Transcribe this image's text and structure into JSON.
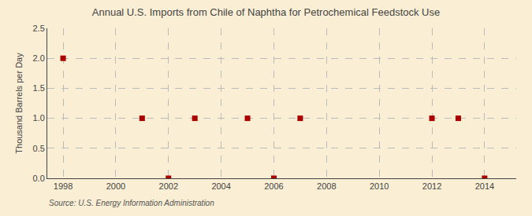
{
  "chart_data": {
    "type": "scatter",
    "title": "Annual U.S. Imports from Chile of Naphtha for Petrochemical Feedstock Use",
    "ylabel": "Thousand Barrels per Day",
    "annotation": "Source: U.S. Energy Information Administration",
    "x": [
      1998,
      2001,
      2002,
      2003,
      2005,
      2006,
      2007,
      2012,
      2013,
      2014
    ],
    "values": [
      2.0,
      1.0,
      0.0,
      1.0,
      1.0,
      0.0,
      1.0,
      1.0,
      1.0,
      0.0
    ],
    "color": "#aa0000",
    "marker": "square",
    "xlim": [
      1997.4,
      2015.2
    ],
    "ylim": [
      0.0,
      2.5
    ],
    "xticks": [
      1998,
      2000,
      2002,
      2004,
      2006,
      2008,
      2010,
      2012,
      2014
    ],
    "yticks": [
      {
        "value": 0.0,
        "label": "0.0"
      },
      0.5,
      {
        "value": 1.0,
        "label": "1.0"
      },
      1.5,
      {
        "value": 2.0,
        "label": "2.0"
      },
      2.5
    ],
    "grid": true
  }
}
